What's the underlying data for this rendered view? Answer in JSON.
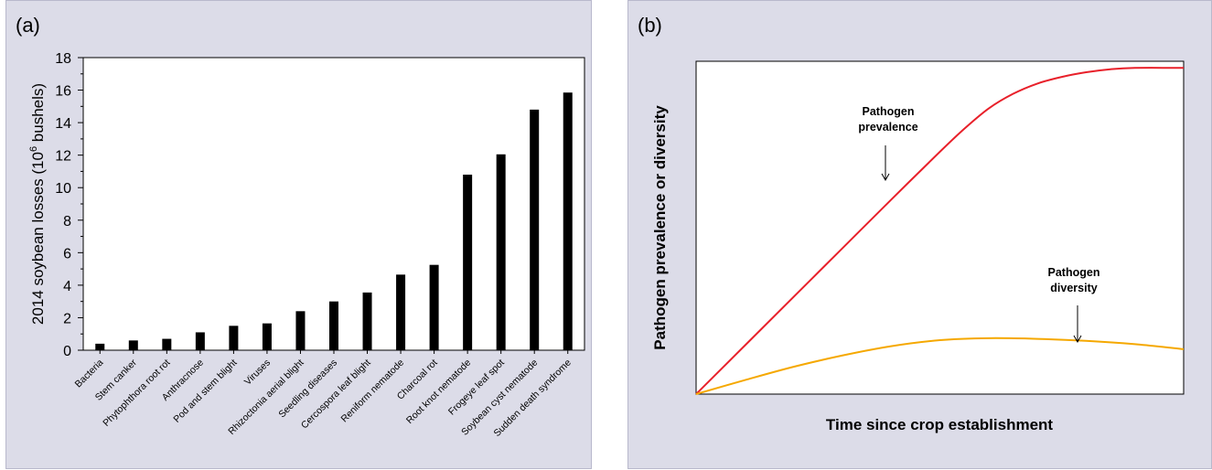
{
  "panels": {
    "a": {
      "label": "(a)"
    },
    "b": {
      "label": "(b)"
    }
  },
  "colors": {
    "panel_background": "#dcdce8",
    "plot_background": "#ffffff",
    "bar": "#000000",
    "prevalence_line": "#e8202a",
    "diversity_line": "#f5a800"
  },
  "chart_data": [
    {
      "type": "bar",
      "title": "",
      "xlabel": "",
      "ylabel_main": "2014 soybean losses (10",
      "ylabel_sup": "6",
      "ylabel_end": " bushels)",
      "ylim": [
        0,
        18
      ],
      "yticks": [
        0,
        2,
        4,
        6,
        8,
        10,
        12,
        14,
        16,
        18
      ],
      "categories": [
        "Bacteria",
        "Stem canker",
        "Phytophthora root rot",
        "Anthracnose",
        "Pod and stem blight",
        "Viruses",
        "Rhizoctonia aerial blight",
        "Seedling diseases",
        "Cercospora leaf blight",
        "Reniform nematode",
        "Charcoal rot",
        "Root knot nematode",
        "Frogeye leaf spot",
        "Soybean cyst nematode",
        "Sudden death syndrome"
      ],
      "values": [
        0.4,
        0.6,
        0.7,
        1.1,
        1.5,
        1.65,
        2.4,
        3.0,
        3.55,
        4.65,
        5.25,
        10.8,
        12.05,
        14.8,
        15.85
      ],
      "grid": false
    },
    {
      "type": "line",
      "title": "",
      "xlabel": "Time since crop establishment",
      "ylabel": "Pathogen prevalence or diversity",
      "grid": false,
      "series": [
        {
          "name": "Pathogen prevalence",
          "label_lines": [
            "Pathogen",
            "prevalence"
          ],
          "x": [
            0,
            0.1,
            0.2,
            0.3,
            0.4,
            0.5,
            0.55,
            0.6,
            0.65,
            0.7,
            0.75,
            0.8,
            0.85,
            0.9,
            1.0
          ],
          "y": [
            0,
            0.146,
            0.292,
            0.438,
            0.584,
            0.728,
            0.797,
            0.858,
            0.902,
            0.933,
            0.953,
            0.967,
            0.976,
            0.98,
            0.98
          ]
        },
        {
          "name": "Pathogen diversity",
          "label_lines": [
            "Pathogen",
            "diversity"
          ],
          "x": [
            0,
            0.1,
            0.2,
            0.3,
            0.4,
            0.5,
            0.6,
            0.7,
            0.8,
            0.9,
            1.0
          ],
          "y": [
            0,
            0.042,
            0.082,
            0.116,
            0.144,
            0.162,
            0.168,
            0.166,
            0.16,
            0.15,
            0.135
          ]
        }
      ]
    }
  ]
}
